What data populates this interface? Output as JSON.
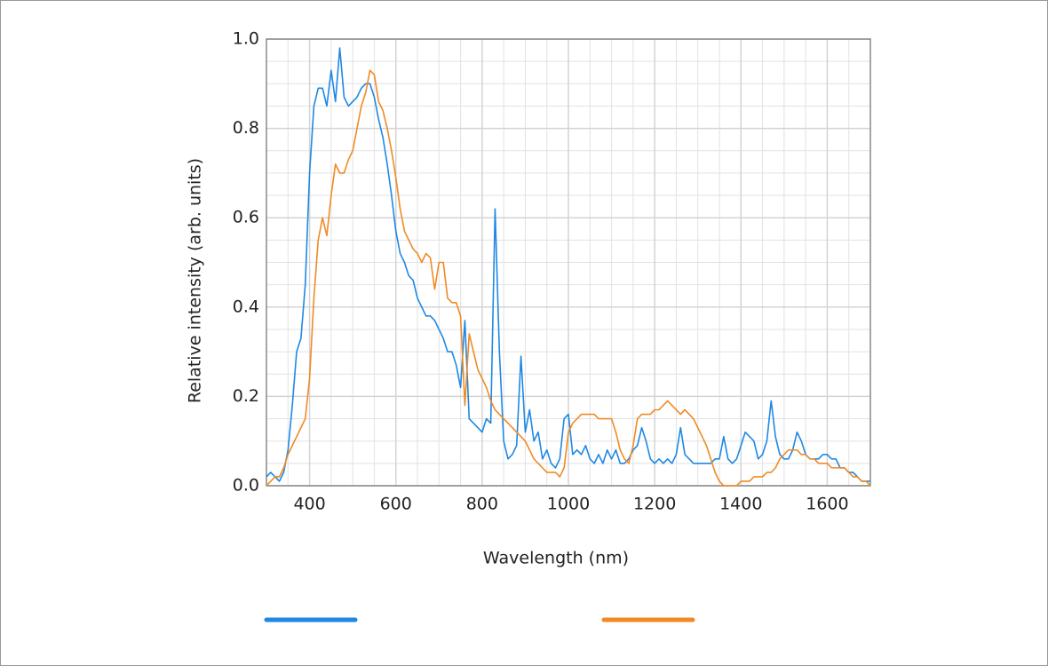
{
  "chart_data": {
    "type": "line",
    "xlabel": "Wavelength (nm)",
    "ylabel": "Relative intensity (arb. units)",
    "x": [
      300,
      310,
      320,
      330,
      340,
      350,
      360,
      370,
      380,
      390,
      400,
      410,
      420,
      430,
      440,
      450,
      460,
      470,
      480,
      490,
      500,
      510,
      520,
      530,
      540,
      550,
      560,
      570,
      580,
      590,
      600,
      610,
      620,
      630,
      640,
      650,
      660,
      670,
      680,
      690,
      700,
      710,
      720,
      730,
      740,
      750,
      760,
      770,
      780,
      790,
      800,
      810,
      820,
      830,
      840,
      850,
      860,
      870,
      880,
      890,
      900,
      910,
      920,
      930,
      940,
      950,
      960,
      970,
      980,
      990,
      1000,
      1010,
      1020,
      1030,
      1040,
      1050,
      1060,
      1070,
      1080,
      1090,
      1100,
      1110,
      1120,
      1130,
      1140,
      1150,
      1160,
      1170,
      1180,
      1190,
      1200,
      1210,
      1220,
      1230,
      1240,
      1250,
      1260,
      1270,
      1280,
      1290,
      1300,
      1310,
      1320,
      1330,
      1340,
      1350,
      1360,
      1370,
      1380,
      1390,
      1400,
      1410,
      1420,
      1430,
      1440,
      1450,
      1460,
      1470,
      1480,
      1490,
      1500,
      1510,
      1520,
      1530,
      1540,
      1550,
      1560,
      1570,
      1580,
      1590,
      1600,
      1610,
      1620,
      1630,
      1640,
      1650,
      1660,
      1670,
      1680,
      1690,
      1700
    ],
    "series": [
      {
        "color": "#1e88e5",
        "values": [
          0.02,
          0.03,
          0.02,
          0.01,
          0.03,
          0.08,
          0.18,
          0.3,
          0.33,
          0.45,
          0.7,
          0.85,
          0.89,
          0.89,
          0.85,
          0.93,
          0.86,
          0.98,
          0.87,
          0.85,
          0.86,
          0.87,
          0.89,
          0.9,
          0.9,
          0.87,
          0.82,
          0.78,
          0.72,
          0.65,
          0.57,
          0.52,
          0.5,
          0.47,
          0.46,
          0.42,
          0.4,
          0.38,
          0.38,
          0.37,
          0.35,
          0.33,
          0.3,
          0.3,
          0.27,
          0.22,
          0.37,
          0.15,
          0.14,
          0.13,
          0.12,
          0.15,
          0.14,
          0.62,
          0.3,
          0.1,
          0.06,
          0.07,
          0.09,
          0.29,
          0.12,
          0.17,
          0.1,
          0.12,
          0.06,
          0.08,
          0.05,
          0.04,
          0.06,
          0.15,
          0.16,
          0.07,
          0.08,
          0.07,
          0.09,
          0.06,
          0.05,
          0.07,
          0.05,
          0.08,
          0.06,
          0.08,
          0.05,
          0.05,
          0.06,
          0.08,
          0.09,
          0.13,
          0.1,
          0.06,
          0.05,
          0.06,
          0.05,
          0.06,
          0.05,
          0.07,
          0.13,
          0.07,
          0.06,
          0.05,
          0.05,
          0.05,
          0.05,
          0.05,
          0.06,
          0.06,
          0.11,
          0.06,
          0.05,
          0.06,
          0.09,
          0.12,
          0.11,
          0.1,
          0.06,
          0.07,
          0.1,
          0.19,
          0.11,
          0.07,
          0.06,
          0.06,
          0.08,
          0.12,
          0.1,
          0.07,
          0.06,
          0.06,
          0.06,
          0.07,
          0.07,
          0.06,
          0.06,
          0.04,
          0.04,
          0.03,
          0.03,
          0.02,
          0.01,
          0.01,
          0.01
        ]
      },
      {
        "color": "#f08a24",
        "values": [
          0.0,
          0.01,
          0.02,
          0.02,
          0.04,
          0.07,
          0.09,
          0.11,
          0.13,
          0.15,
          0.24,
          0.42,
          0.55,
          0.6,
          0.56,
          0.65,
          0.72,
          0.7,
          0.7,
          0.73,
          0.75,
          0.8,
          0.85,
          0.88,
          0.93,
          0.92,
          0.86,
          0.84,
          0.8,
          0.75,
          0.69,
          0.62,
          0.57,
          0.55,
          0.53,
          0.52,
          0.5,
          0.52,
          0.51,
          0.44,
          0.5,
          0.5,
          0.42,
          0.41,
          0.41,
          0.38,
          0.18,
          0.34,
          0.3,
          0.26,
          0.24,
          0.22,
          0.19,
          0.17,
          0.16,
          0.15,
          0.14,
          0.13,
          0.12,
          0.11,
          0.1,
          0.08,
          0.06,
          0.05,
          0.04,
          0.03,
          0.03,
          0.03,
          0.02,
          0.04,
          0.12,
          0.14,
          0.15,
          0.16,
          0.16,
          0.16,
          0.16,
          0.15,
          0.15,
          0.15,
          0.15,
          0.12,
          0.08,
          0.06,
          0.05,
          0.09,
          0.15,
          0.16,
          0.16,
          0.16,
          0.17,
          0.17,
          0.18,
          0.19,
          0.18,
          0.17,
          0.16,
          0.17,
          0.16,
          0.15,
          0.13,
          0.11,
          0.09,
          0.06,
          0.03,
          0.01,
          0.0,
          0.0,
          0.0,
          0.0,
          0.01,
          0.01,
          0.01,
          0.02,
          0.02,
          0.02,
          0.03,
          0.03,
          0.04,
          0.06,
          0.07,
          0.08,
          0.08,
          0.08,
          0.07,
          0.07,
          0.06,
          0.06,
          0.05,
          0.05,
          0.05,
          0.04,
          0.04,
          0.04,
          0.04,
          0.03,
          0.02,
          0.02,
          0.01,
          0.01,
          0.0
        ]
      }
    ],
    "xlim": [
      300,
      1700
    ],
    "ylim": [
      0,
      1
    ],
    "xticks": [
      400,
      600,
      800,
      1000,
      1200,
      1400,
      1600
    ],
    "yticks": [
      {
        "value": 0,
        "label": "0.0"
      },
      0.2,
      0.4,
      0.6,
      0.8,
      {
        "value": 1,
        "label": "1.0"
      }
    ],
    "grid": true,
    "legend": "bottom"
  }
}
